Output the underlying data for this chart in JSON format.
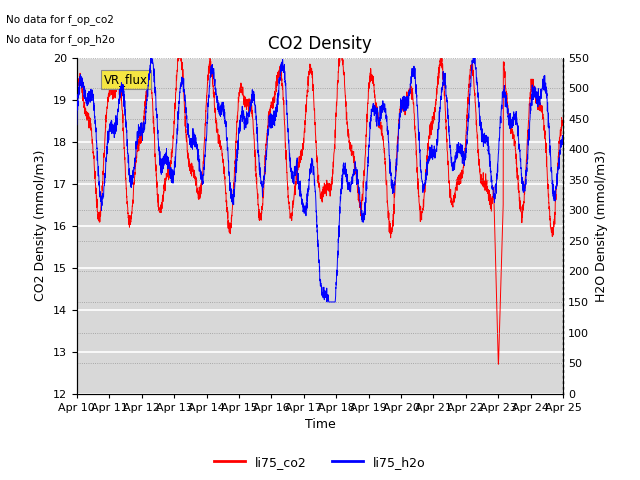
{
  "title": "CO2 Density",
  "xlabel": "Time",
  "ylabel_left": "CO2 Density (mmol/m3)",
  "ylabel_right": "H2O Density (mmol/m3)",
  "ylim_left": [
    12.0,
    20.0
  ],
  "ylim_right": [
    0,
    550
  ],
  "yticks_left": [
    12.0,
    13.0,
    14.0,
    15.0,
    16.0,
    17.0,
    18.0,
    19.0,
    20.0
  ],
  "yticks_right": [
    0,
    50,
    100,
    150,
    200,
    250,
    300,
    350,
    400,
    450,
    500,
    550
  ],
  "xtick_labels": [
    "Apr 10",
    "Apr 11",
    "Apr 12",
    "Apr 13",
    "Apr 14",
    "Apr 15",
    "Apr 16",
    "Apr 17",
    "Apr 18",
    "Apr 19",
    "Apr 20",
    "Apr 21",
    "Apr 22",
    "Apr 23",
    "Apr 24",
    "Apr 25"
  ],
  "annotation_lines": [
    "No data for f_op_co2",
    "No data for f_op_h2o"
  ],
  "vr_flux_label": "VR_flux",
  "legend_labels": [
    "li75_co2",
    "li75_h2o"
  ],
  "line_colors": [
    "red",
    "blue"
  ],
  "bg_color": "#d8d8d8",
  "fig_color": "#ffffff",
  "title_fontsize": 12,
  "axis_fontsize": 9,
  "tick_fontsize": 8
}
